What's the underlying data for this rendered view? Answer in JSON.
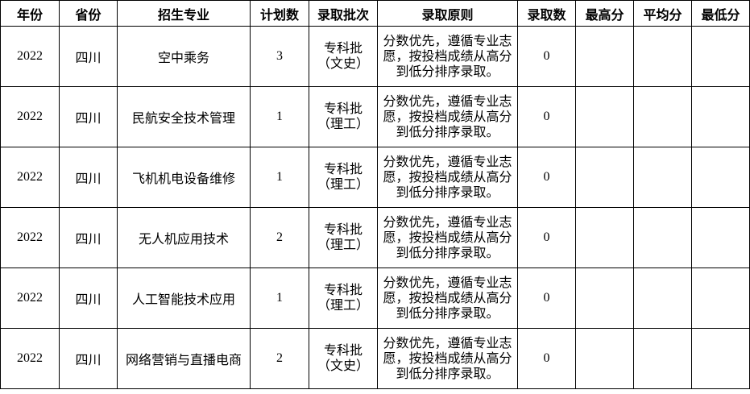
{
  "colors": {
    "border": "#000000",
    "text": "#000000",
    "background": "#ffffff"
  },
  "table": {
    "headers": {
      "year": "年份",
      "province": "省份",
      "major": "招生专业",
      "plan": "计划数",
      "batch": "录取批次",
      "principle": "录取原则",
      "admitted": "录取数",
      "highest": "最高分",
      "average": "平均分",
      "lowest": "最低分"
    },
    "rows": [
      {
        "year": "2022",
        "province": "四川",
        "major": "空中乘务",
        "plan": "3",
        "batch_line1": "专科批",
        "batch_line2": "（文史）",
        "principle": "分数优先，遵循专业志愿，按投档成绩从高分到低分排序录取。",
        "admitted": "0",
        "highest": "",
        "average": "",
        "lowest": ""
      },
      {
        "year": "2022",
        "province": "四川",
        "major": "民航安全技术管理",
        "plan": "1",
        "batch_line1": "专科批",
        "batch_line2": "（理工）",
        "principle": "分数优先，遵循专业志愿，按投档成绩从高分到低分排序录取。",
        "admitted": "0",
        "highest": "",
        "average": "",
        "lowest": ""
      },
      {
        "year": "2022",
        "province": "四川",
        "major": "飞机机电设备维修",
        "plan": "1",
        "batch_line1": "专科批",
        "batch_line2": "（理工）",
        "principle": "分数优先，遵循专业志愿，按投档成绩从高分到低分排序录取。",
        "admitted": "0",
        "highest": "",
        "average": "",
        "lowest": ""
      },
      {
        "year": "2022",
        "province": "四川",
        "major": "无人机应用技术",
        "plan": "2",
        "batch_line1": "专科批",
        "batch_line2": "（理工）",
        "principle": "分数优先，遵循专业志愿，按投档成绩从高分到低分排序录取。",
        "admitted": "0",
        "highest": "",
        "average": "",
        "lowest": ""
      },
      {
        "year": "2022",
        "province": "四川",
        "major": "人工智能技术应用",
        "plan": "1",
        "batch_line1": "专科批",
        "batch_line2": "（理工）",
        "principle": "分数优先，遵循专业志愿，按投档成绩从高分到低分排序录取。",
        "admitted": "0",
        "highest": "",
        "average": "",
        "lowest": ""
      },
      {
        "year": "2022",
        "province": "四川",
        "major": "网络营销与直播电商",
        "plan": "2",
        "batch_line1": "专科批",
        "batch_line2": "（文史）",
        "principle": "分数优先，遵循专业志愿，按投档成绩从高分到低分排序录取。",
        "admitted": "0",
        "highest": "",
        "average": "",
        "lowest": ""
      }
    ]
  }
}
